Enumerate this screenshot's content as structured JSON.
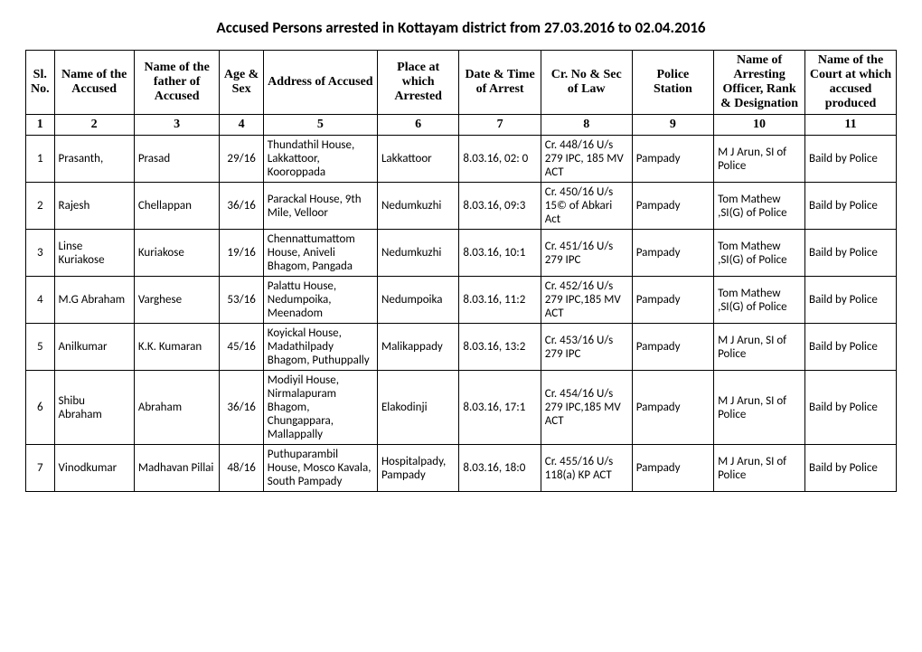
{
  "title": "Accused Persons arrested in   Kottayam  district from  27.03.2016 to 02.04.2016",
  "headers": [
    "Sl. No.",
    "Name of the Accused",
    "Name of the father of Accused",
    "Age & Sex",
    "Address of Accused",
    "Place at which Arrested",
    "Date & Time of Arrest",
    "Cr. No & Sec of Law",
    "Police Station",
    "Name of Arresting Officer, Rank & Designation",
    "Name of the Court at which accused produced"
  ],
  "colnums": [
    "1",
    "2",
    "3",
    "4",
    "5",
    "6",
    "7",
    "8",
    "9",
    "10",
    "11"
  ],
  "rows": [
    {
      "sl": "1",
      "name": "Prasanth,",
      "father": "Prasad",
      "age": "29/16",
      "addr": "Thundathil House, Lakkattoor, Kooroppada",
      "place": "Lakkattoor",
      "date": "8.03.16, 02: 0",
      "cr": "Cr. 448/16 U/s 279 IPC, 185 MV ACT",
      "ps": "Pampady",
      "off": "M J Arun, SI of Police",
      "court": "Baild by Police"
    },
    {
      "sl": "2",
      "name": "Rajesh",
      "father": "Chellappan",
      "age": "36/16",
      "addr": "Parackal House, 9th Mile, Velloor",
      "place": "Nedumkuzhi",
      "date": "8.03.16, 09:3",
      "cr": "Cr. 450/16 U/s 15© of Abkari Act",
      "ps": "Pampady",
      "off": "Tom Mathew ,SI(G) of Police",
      "court": "Baild by Police"
    },
    {
      "sl": "3",
      "name": "Linse Kuriakose",
      "father": "Kuriakose",
      "age": "19/16",
      "addr": "Chennattumattom House, Aniveli Bhagom, Pangada",
      "place": "Nedumkuzhi",
      "date": "8.03.16, 10:1",
      "cr": "Cr. 451/16 U/s 279 IPC",
      "ps": "Pampady",
      "off": "Tom Mathew ,SI(G) of Police",
      "court": "Baild by Police"
    },
    {
      "sl": "4",
      "name": "M.G Abraham",
      "father": "Varghese",
      "age": "53/16",
      "addr": "Palattu House, Nedumpoika, Meenadom",
      "place": "Nedumpoika",
      "date": "8.03.16, 11:2",
      "cr": "Cr. 452/16 U/s 279 IPC,185 MV ACT",
      "ps": "Pampady",
      "off": "Tom Mathew ,SI(G) of Police",
      "court": "Baild by Police"
    },
    {
      "sl": "5",
      "name": "Anilkumar",
      "father": "K.K. Kumaran",
      "age": "45/16",
      "addr": "Koyickal House, Madathilpady Bhagom, Puthuppally",
      "place": "Malikappady",
      "date": "8.03.16, 13:2",
      "cr": "Cr. 453/16 U/s 279 IPC",
      "ps": "Pampady",
      "off": "M J Arun, SI of Police",
      "court": "Baild by Police"
    },
    {
      "sl": "6",
      "name": "Shibu Abraham",
      "father": "Abraham",
      "age": "36/16",
      "addr": "Modiyil House, Nirmalapuram Bhagom, Chungappara, Mallappally",
      "place": "Elakodinji",
      "date": "8.03.16, 17:1",
      "cr": "Cr. 454/16 U/s 279 IPC,185 MV ACT",
      "ps": "Pampady",
      "off": "M J Arun, SI of Police",
      "court": "Baild by Police"
    },
    {
      "sl": "7",
      "name": "Vinodkumar",
      "father": "Madhavan Pillai",
      "age": "48/16",
      "addr": "Puthuparambil House, Mosco Kavala, South Pampady",
      "place": "Hospitalpady, Pampady",
      "date": "8.03.16, 18:0",
      "cr": "Cr. 455/16 U/s 118(a) KP ACT",
      "ps": "Pampady",
      "off": "M J Arun, SI of Police",
      "court": "Baild by Police"
    }
  ]
}
